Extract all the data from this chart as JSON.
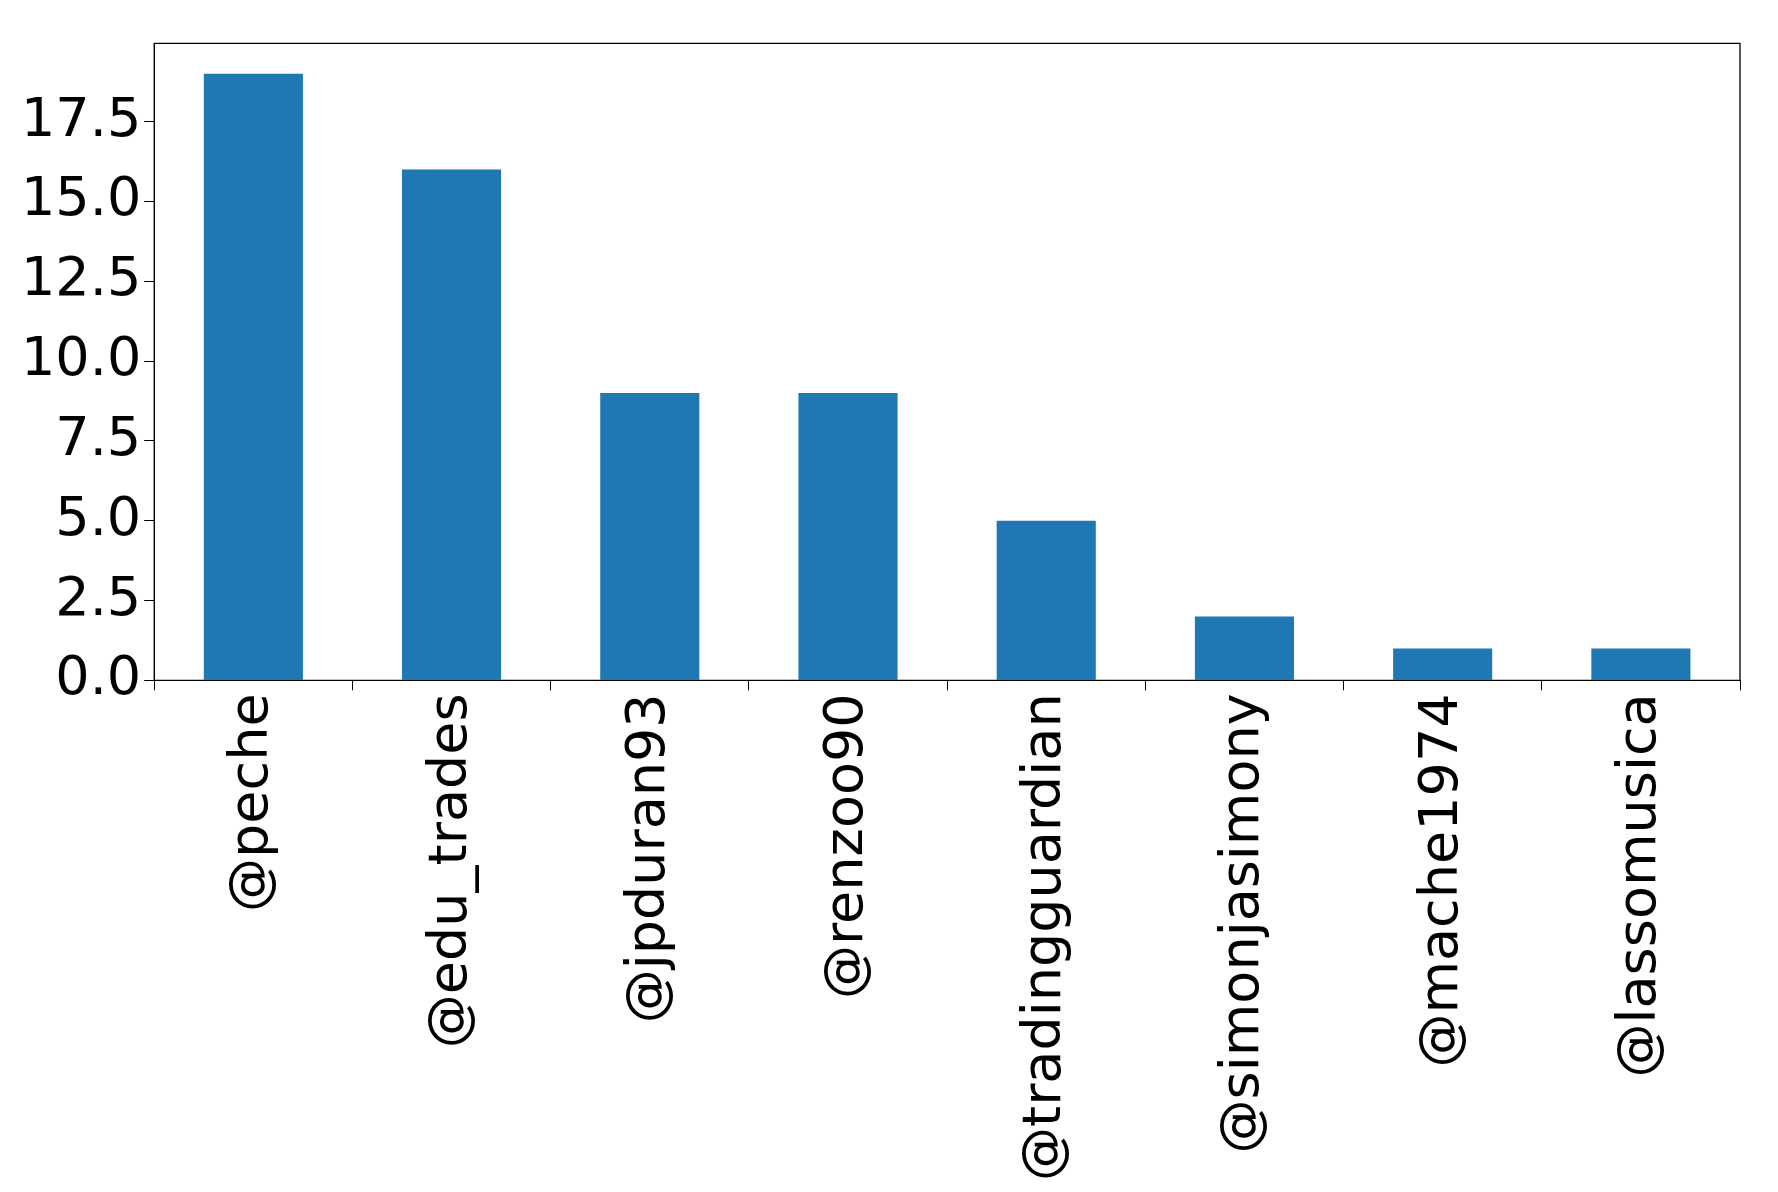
{
  "chart_data": {
    "type": "bar",
    "categories": [
      "@peche",
      "@edu_trades",
      "@jpduran93",
      "@renzoo90",
      "@tradingguardian",
      "@simonjasimony",
      "@mache1974",
      "@lassomusica"
    ],
    "values": [
      19,
      16,
      9,
      9,
      5,
      2,
      1,
      1
    ],
    "color": "#1f77b4",
    "ylim": [
      0,
      19.95
    ],
    "yticks": [
      {
        "value": 0,
        "label": "0.0"
      },
      {
        "value": 2.5,
        "label": "2.5"
      },
      {
        "value": 5,
        "label": "5.0"
      },
      {
        "value": 7.5,
        "label": "7.5"
      },
      {
        "value": 10,
        "label": "10.0"
      },
      {
        "value": 12.5,
        "label": "12.5"
      },
      {
        "value": 15,
        "label": "15.0"
      },
      {
        "value": 17.5,
        "label": "17.5"
      }
    ],
    "grid": false,
    "legend": false
  }
}
